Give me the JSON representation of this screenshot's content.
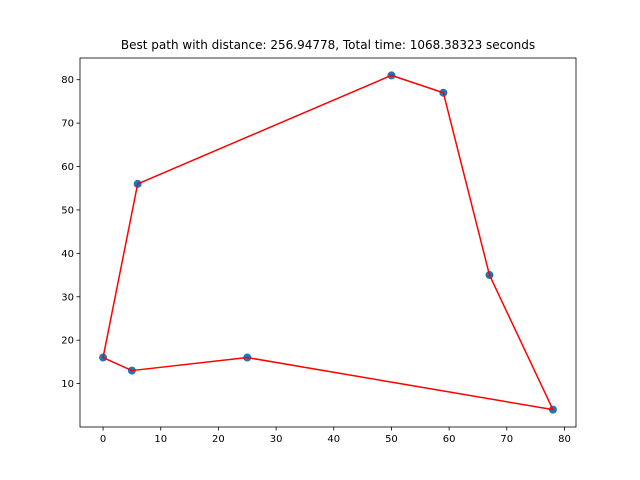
{
  "chart_data": {
    "type": "scatter",
    "title": "Best path with distance: 256.94778, Total time: 1068.38323 seconds",
    "xlabel": "",
    "ylabel": "",
    "xlim": [
      -4,
      82
    ],
    "ylim": [
      0,
      85
    ],
    "xticks": [
      0,
      10,
      20,
      30,
      40,
      50,
      60,
      70,
      80
    ],
    "yticks": [
      10,
      20,
      30,
      40,
      50,
      60,
      70,
      80
    ],
    "grid": false,
    "points": [
      {
        "x": 0,
        "y": 16
      },
      {
        "x": 5,
        "y": 13
      },
      {
        "x": 6,
        "y": 56
      },
      {
        "x": 25,
        "y": 16
      },
      {
        "x": 50,
        "y": 81
      },
      {
        "x": 59,
        "y": 77
      },
      {
        "x": 67,
        "y": 35
      },
      {
        "x": 78,
        "y": 4
      }
    ],
    "path": [
      {
        "x": 0,
        "y": 16
      },
      {
        "x": 6,
        "y": 56
      },
      {
        "x": 50,
        "y": 81
      },
      {
        "x": 59,
        "y": 77
      },
      {
        "x": 67,
        "y": 35
      },
      {
        "x": 78,
        "y": 4
      },
      {
        "x": 25,
        "y": 16
      },
      {
        "x": 5,
        "y": 13
      },
      {
        "x": 0,
        "y": 16
      }
    ],
    "point_color": "#1f77b4",
    "path_color": "#ff0000"
  }
}
